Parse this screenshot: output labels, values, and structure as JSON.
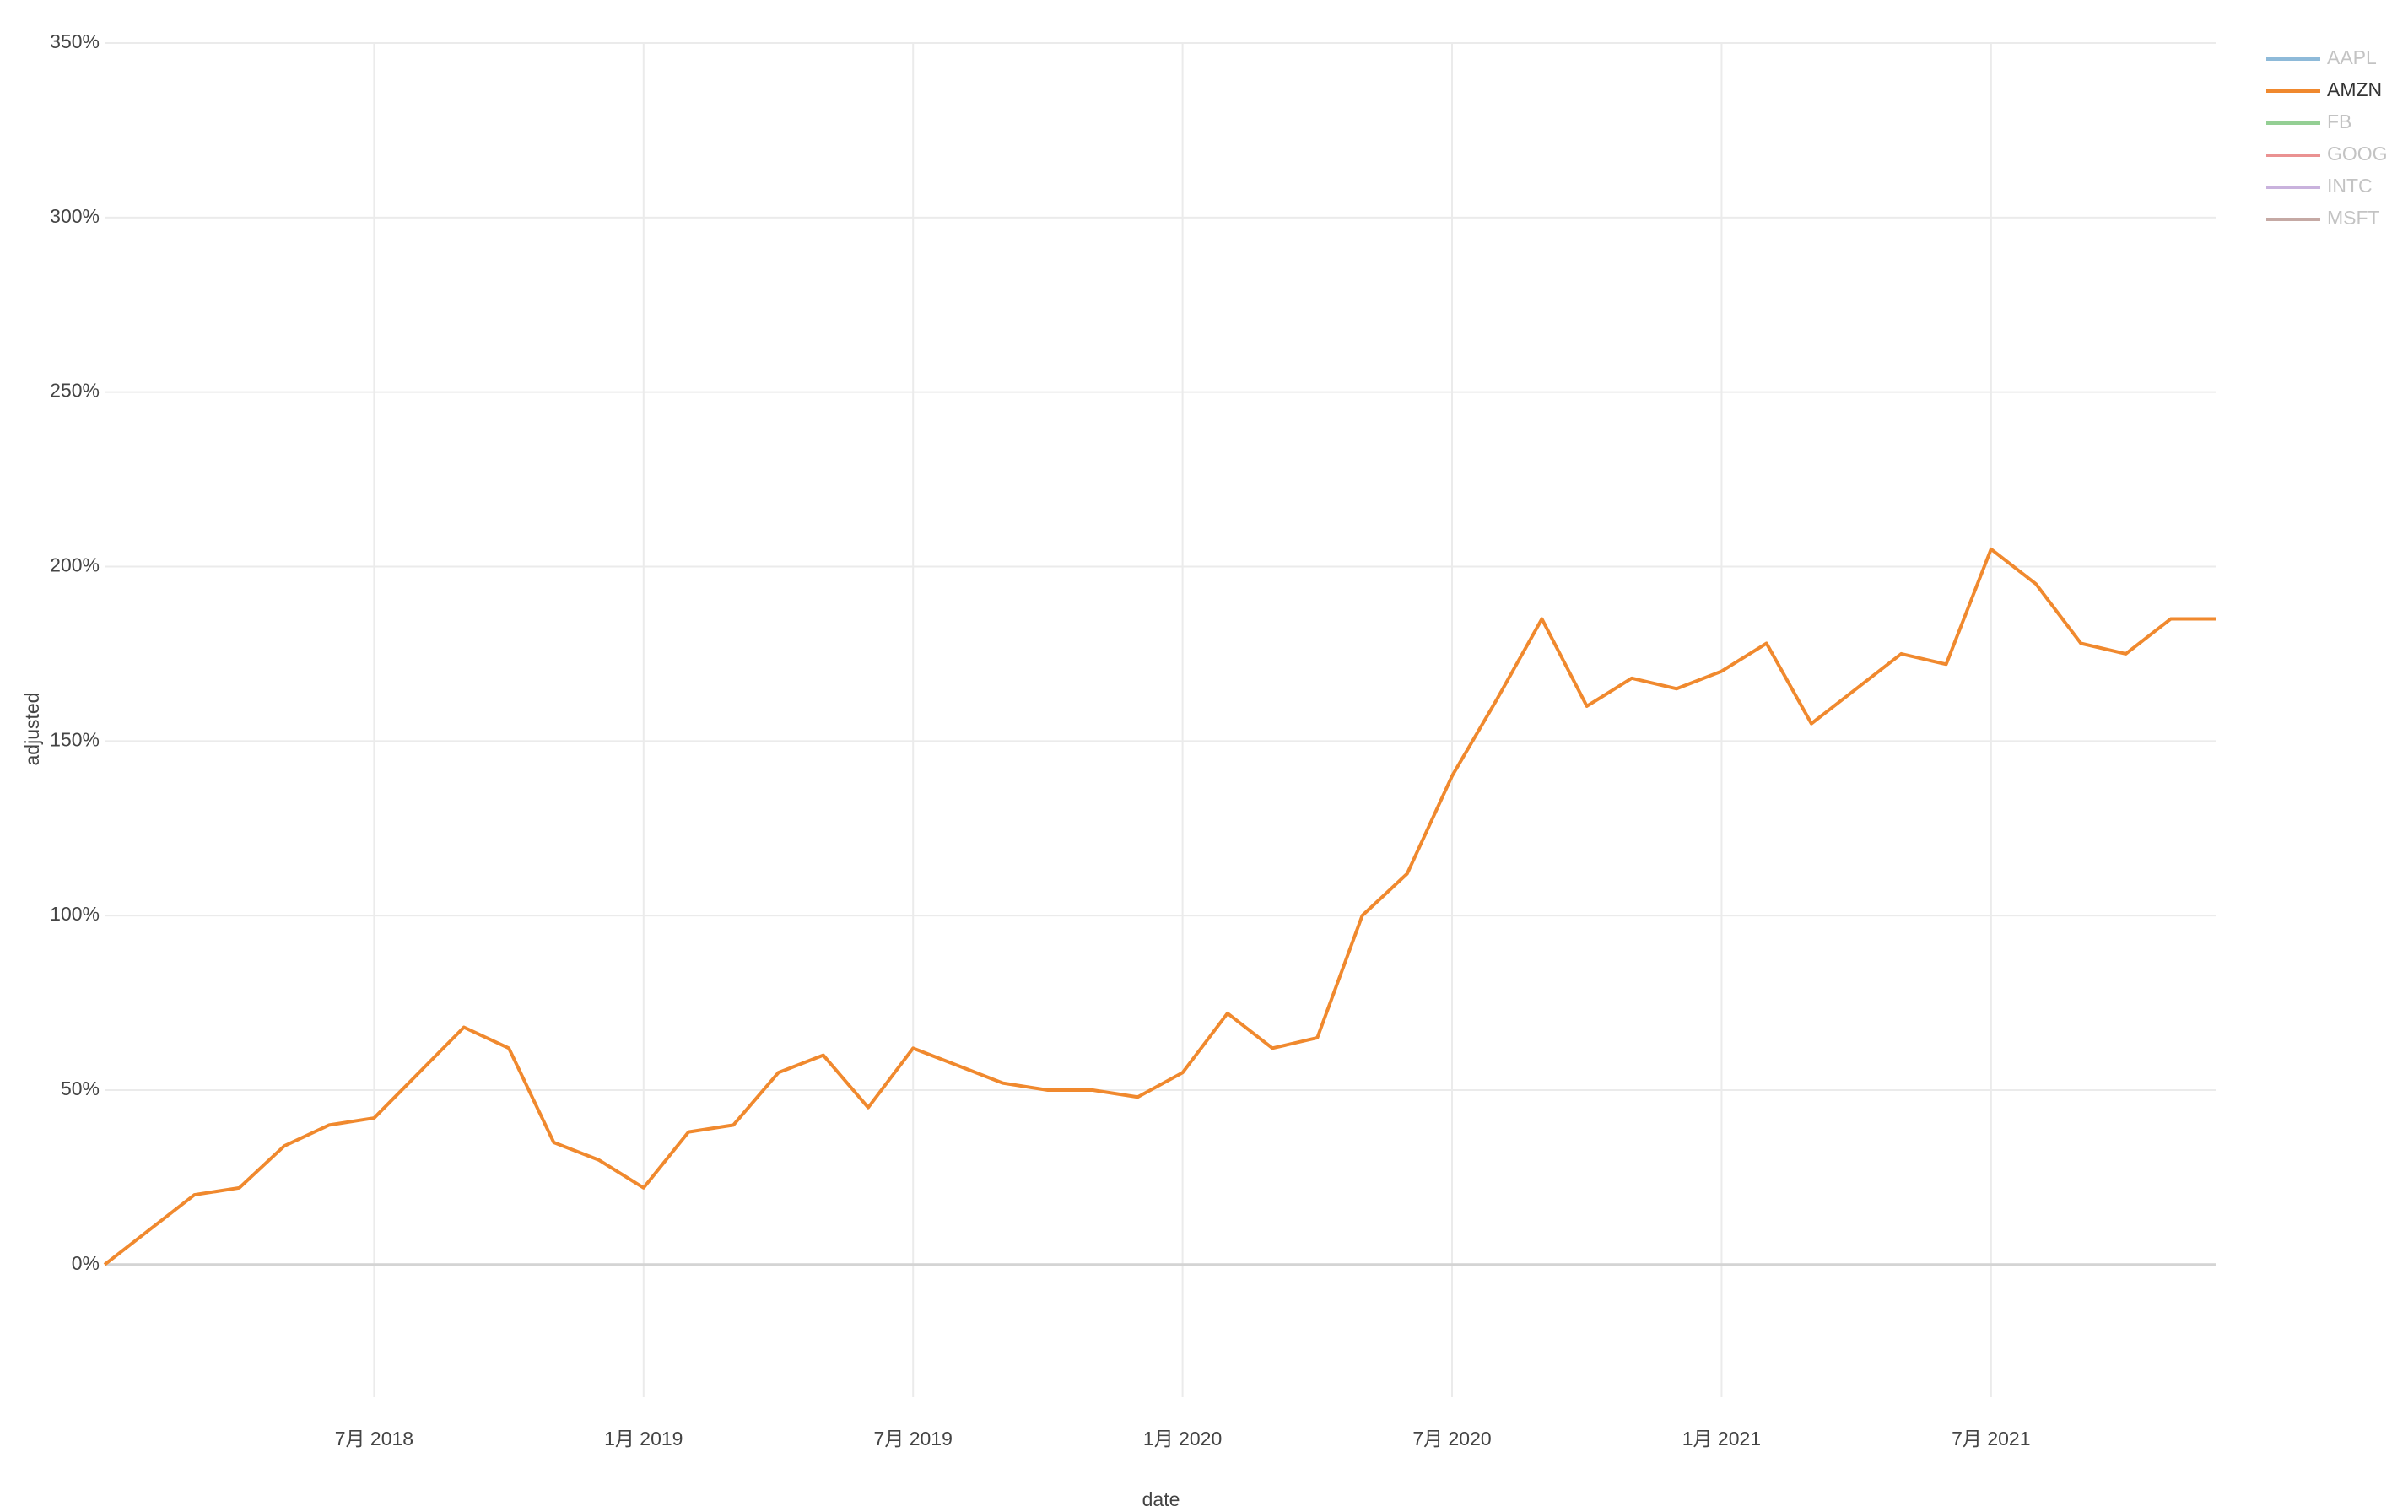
{
  "chart_data": {
    "type": "line",
    "x_label": "date",
    "y_label": "adjusted",
    "x": [
      "2018-01",
      "2018-02",
      "2018-03",
      "2018-04",
      "2018-05",
      "2018-06",
      "2018-07",
      "2018-08",
      "2018-09",
      "2018-10",
      "2018-11",
      "2018-12",
      "2019-01",
      "2019-02",
      "2019-03",
      "2019-04",
      "2019-05",
      "2019-06",
      "2019-07",
      "2019-08",
      "2019-09",
      "2019-10",
      "2019-11",
      "2019-12",
      "2020-01",
      "2020-02",
      "2020-03",
      "2020-04",
      "2020-05",
      "2020-06",
      "2020-07",
      "2020-08",
      "2020-09",
      "2020-10",
      "2020-11",
      "2020-12",
      "2021-01",
      "2021-02",
      "2021-03",
      "2021-04",
      "2021-05",
      "2021-06",
      "2021-07",
      "2021-08",
      "2021-09",
      "2021-10",
      "2021-11",
      "2021-12"
    ],
    "series": [
      {
        "name": "AAPL",
        "color": "#1f77b4",
        "visible": false
      },
      {
        "name": "AMZN",
        "color": "#f0892e",
        "visible": true,
        "values": [
          0,
          10,
          20,
          22,
          34,
          40,
          42,
          55,
          68,
          62,
          35,
          30,
          22,
          38,
          40,
          55,
          60,
          45,
          62,
          57,
          52,
          50,
          50,
          48,
          55,
          72,
          62,
          65,
          100,
          112,
          140,
          162,
          185,
          160,
          168,
          165,
          170,
          178,
          155,
          165,
          175,
          172,
          205,
          195,
          178,
          175,
          185,
          185
        ]
      },
      {
        "name": "FB",
        "color": "#2ca02c",
        "visible": false
      },
      {
        "name": "GOOG",
        "color": "#d62728",
        "visible": false
      },
      {
        "name": "INTC",
        "color": "#9467bd",
        "visible": false
      },
      {
        "name": "MSFT",
        "color": "#8c564b",
        "visible": false
      }
    ],
    "xlim": [
      "2018-01",
      "2021-12"
    ],
    "xticks": [
      {
        "value": "2018-07",
        "label": "7月 2018"
      },
      {
        "value": "2019-01",
        "label": "1月 2019"
      },
      {
        "value": "2019-07",
        "label": "7月 2019"
      },
      {
        "value": "2020-01",
        "label": "1月 2020"
      },
      {
        "value": "2020-07",
        "label": "7月 2020"
      },
      {
        "value": "2021-01",
        "label": "1月 2021"
      },
      {
        "value": "2021-07",
        "label": "7月 2021"
      }
    ],
    "ylim": [
      -38,
      350
    ],
    "yticks": [
      {
        "value": 0,
        "label": "0%"
      },
      {
        "value": 50,
        "label": "50%"
      },
      {
        "value": 100,
        "label": "100%"
      },
      {
        "value": 150,
        "label": "150%"
      },
      {
        "value": 200,
        "label": "200%"
      },
      {
        "value": 250,
        "label": "250%"
      },
      {
        "value": 300,
        "label": "300%"
      },
      {
        "value": 350,
        "label": "350%"
      }
    ],
    "grid": true,
    "legend": "top-right"
  }
}
